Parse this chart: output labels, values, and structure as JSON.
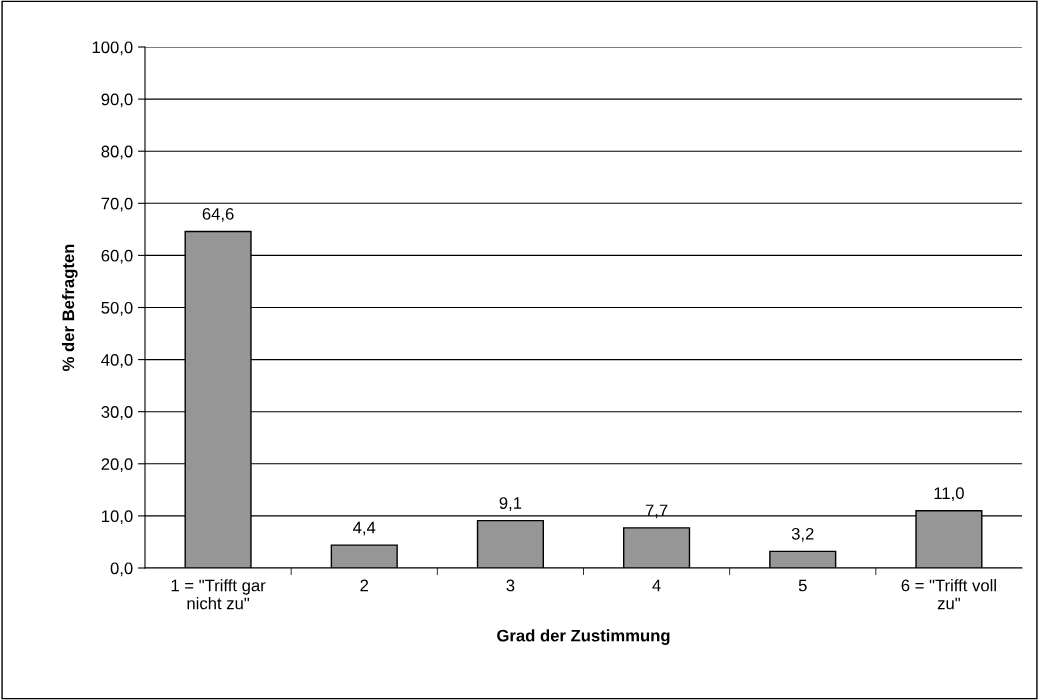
{
  "chart_data": {
    "type": "bar",
    "xlabel": "Grad der Zustimmung",
    "ylabel": "% der Befragten",
    "categories": [
      "1 = \"Trifft gar\nnicht zu\"",
      "2",
      "3",
      "4",
      "5",
      "6 = \"Trifft voll\nzu\""
    ],
    "values": [
      64.6,
      4.4,
      9.1,
      7.7,
      3.2,
      11.0
    ],
    "value_labels": [
      "64,6",
      "4,4",
      "9,1",
      "7,7",
      "3,2",
      "11,0"
    ],
    "color": "#969696",
    "ylim": [
      0,
      100
    ],
    "yticks": [
      {
        "value": 0,
        "label": "0,0"
      },
      {
        "value": 10,
        "label": "10,0"
      },
      {
        "value": 20,
        "label": "20,0"
      },
      {
        "value": 30,
        "label": "30,0"
      },
      {
        "value": 40,
        "label": "40,0"
      },
      {
        "value": 50,
        "label": "50,0"
      },
      {
        "value": 60,
        "label": "60,0"
      },
      {
        "value": 70,
        "label": "70,0"
      },
      {
        "value": 80,
        "label": "80,0"
      },
      {
        "value": 90,
        "label": "90,0"
      },
      {
        "value": 100,
        "label": "100,0"
      }
    ],
    "grid": "y",
    "legend": false
  }
}
